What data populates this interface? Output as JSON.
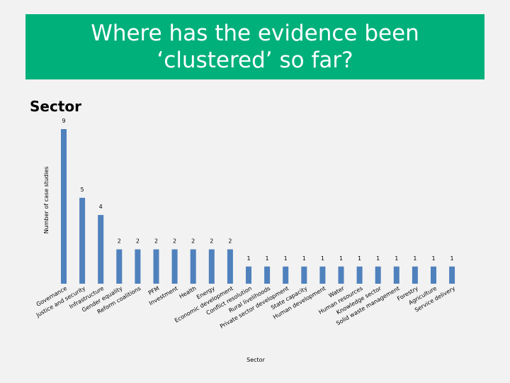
{
  "slide": {
    "title": "Where has the evidence been ‘clustered’ so far?",
    "section_label": "Sector"
  },
  "colors": {
    "banner": "#00b07a",
    "bar": "#4f81bd",
    "background": "#f2f2f2"
  },
  "chart_data": {
    "type": "bar",
    "xlabel": "Sector",
    "ylabel": "Number of case studies",
    "grid": false,
    "legend": "none",
    "categories": [
      "Governance",
      "Justice and security",
      "Infrastructure",
      "Gender equality",
      "Reform coalitions",
      "PFM",
      "Investment",
      "Health",
      "Energy",
      "Economic development",
      "Conflict resolution",
      "Rural livelihoods",
      "Private sector development",
      "State capacity",
      "Human development",
      "Water",
      "Human resources",
      "Knowledge sector",
      "Solid waste management",
      "Forestry",
      "Agriculture",
      "Service delivery"
    ],
    "values": [
      9,
      5,
      4,
      2,
      2,
      2,
      2,
      2,
      2,
      2,
      1,
      1,
      1,
      1,
      1,
      1,
      1,
      1,
      1,
      1,
      1,
      1
    ],
    "ylim": [
      0,
      9
    ]
  }
}
